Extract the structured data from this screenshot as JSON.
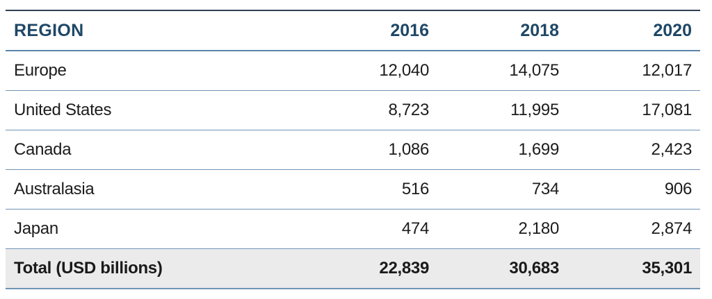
{
  "chart_data": {
    "type": "table",
    "columns": [
      "REGION",
      "2016",
      "2018",
      "2020"
    ],
    "rows": [
      {
        "region": "Europe",
        "values": [
          "12,040",
          "14,075",
          "12,017"
        ]
      },
      {
        "region": "United States",
        "values": [
          "8,723",
          "11,995",
          "17,081"
        ]
      },
      {
        "region": "Canada",
        "values": [
          "1,086",
          "1,699",
          "2,423"
        ]
      },
      {
        "region": "Australasia",
        "values": [
          "516",
          "734",
          "906"
        ]
      },
      {
        "region": "Japan",
        "values": [
          "474",
          "2,180",
          "2,874"
        ]
      }
    ],
    "total": {
      "label": "Total (USD billions)",
      "values": [
        "22,839",
        "30,683",
        "35,301"
      ]
    }
  },
  "colors": {
    "header_text": "#1f4766",
    "top_rule": "#2e3e52",
    "row_rule": "#6f93b6",
    "total_background": "#ebebeb"
  }
}
